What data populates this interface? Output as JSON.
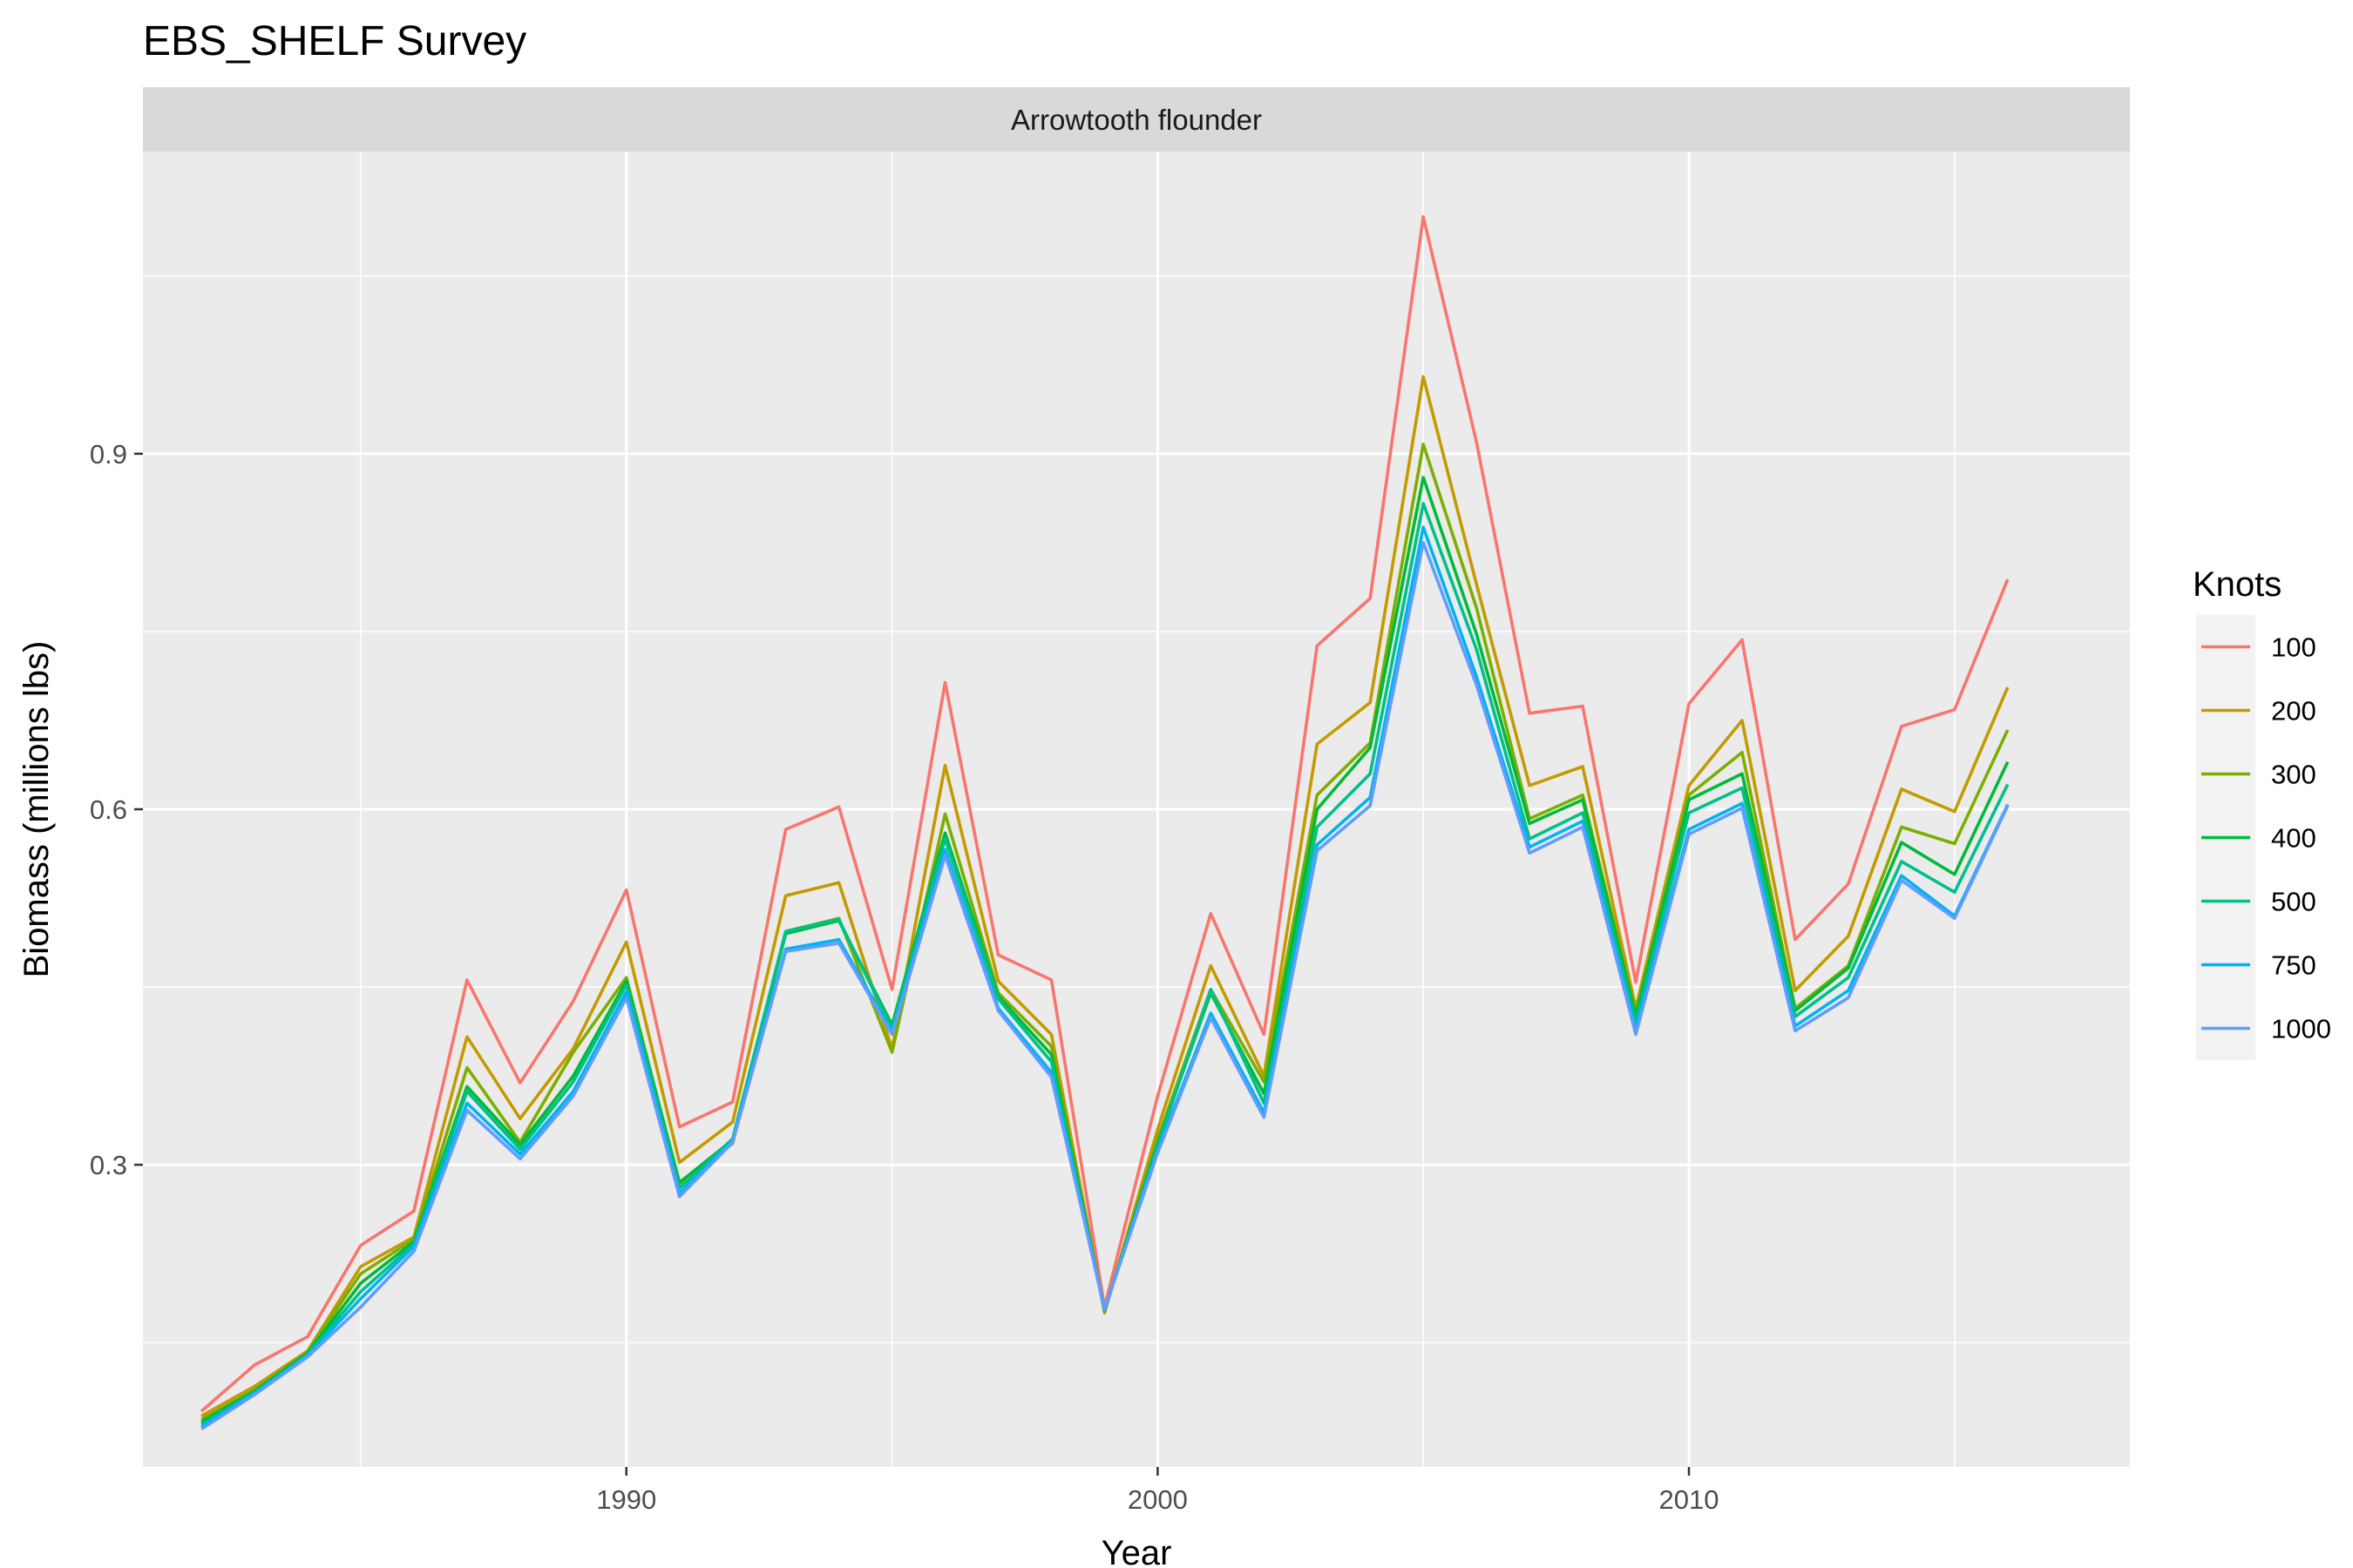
{
  "chart_data": {
    "type": "line",
    "title": "EBS_SHELF Survey",
    "facet_label": "Arrowtooth flounder",
    "xlabel": "Year",
    "ylabel": "Biomass (millions lbs)",
    "x_ticks": [
      1990,
      2000,
      2010
    ],
    "y_ticks": [
      0.3,
      0.6,
      0.9
    ],
    "xlim": [
      1980.9,
      2018.3
    ],
    "ylim": [
      0.045,
      1.155
    ],
    "grid": true,
    "legend_title": "Knots",
    "legend_position": "right",
    "x": [
      1982,
      1983,
      1984,
      1985,
      1986,
      1987,
      1988,
      1989,
      1990,
      1991,
      1992,
      1993,
      1994,
      1995,
      1996,
      1997,
      1998,
      1999,
      2000,
      2001,
      2002,
      2003,
      2004,
      2005,
      2006,
      2007,
      2008,
      2009,
      2010,
      2011,
      2012,
      2013,
      2014,
      2015,
      2016
    ],
    "series": [
      {
        "name": "100",
        "color": "#F8766D",
        "values": [
          0.092,
          0.131,
          0.155,
          0.232,
          0.261,
          0.456,
          0.369,
          0.438,
          0.532,
          0.332,
          0.353,
          0.583,
          0.602,
          0.448,
          0.707,
          0.477,
          0.456,
          0.18,
          0.358,
          0.512,
          0.41,
          0.738,
          0.778,
          1.1,
          0.91,
          0.681,
          0.687,
          0.454,
          0.689,
          0.743,
          0.49,
          0.537,
          0.67,
          0.684,
          0.794
        ]
      },
      {
        "name": "200",
        "color": "#C49A00",
        "values": [
          0.088,
          0.113,
          0.143,
          0.214,
          0.239,
          0.408,
          0.339,
          0.398,
          0.488,
          0.302,
          0.336,
          0.527,
          0.538,
          0.398,
          0.637,
          0.455,
          0.41,
          0.175,
          0.33,
          0.468,
          0.375,
          0.655,
          0.69,
          0.965,
          0.79,
          0.62,
          0.636,
          0.432,
          0.62,
          0.675,
          0.447,
          0.493,
          0.617,
          0.598,
          0.703
        ]
      },
      {
        "name": "300",
        "color": "#7CAE00",
        "values": [
          0.085,
          0.11,
          0.142,
          0.208,
          0.237,
          0.382,
          0.319,
          0.395,
          0.458,
          0.284,
          0.318,
          0.497,
          0.508,
          0.395,
          0.596,
          0.445,
          0.4,
          0.176,
          0.322,
          0.448,
          0.37,
          0.612,
          0.656,
          0.908,
          0.77,
          0.592,
          0.612,
          0.428,
          0.612,
          0.648,
          0.432,
          0.468,
          0.585,
          0.571,
          0.667
        ]
      },
      {
        "name": "400",
        "color": "#00BA38",
        "values": [
          0.083,
          0.109,
          0.141,
          0.2,
          0.235,
          0.366,
          0.317,
          0.375,
          0.455,
          0.285,
          0.321,
          0.495,
          0.506,
          0.418,
          0.58,
          0.442,
          0.393,
          0.177,
          0.318,
          0.445,
          0.36,
          0.6,
          0.652,
          0.88,
          0.748,
          0.588,
          0.608,
          0.425,
          0.608,
          0.63,
          0.43,
          0.466,
          0.572,
          0.545,
          0.64
        ]
      },
      {
        "name": "500",
        "color": "#00C08B",
        "values": [
          0.081,
          0.108,
          0.14,
          0.193,
          0.233,
          0.362,
          0.313,
          0.37,
          0.452,
          0.28,
          0.322,
          0.497,
          0.507,
          0.415,
          0.575,
          0.44,
          0.387,
          0.177,
          0.316,
          0.448,
          0.352,
          0.585,
          0.63,
          0.858,
          0.735,
          0.575,
          0.597,
          0.42,
          0.597,
          0.618,
          0.425,
          0.458,
          0.556,
          0.53,
          0.621
        ]
      },
      {
        "name": "750",
        "color": "#00B4F0",
        "values": [
          0.079,
          0.107,
          0.139,
          0.187,
          0.231,
          0.352,
          0.309,
          0.362,
          0.446,
          0.276,
          0.32,
          0.482,
          0.49,
          0.412,
          0.566,
          0.432,
          0.378,
          0.178,
          0.312,
          0.428,
          0.344,
          0.57,
          0.61,
          0.838,
          0.712,
          0.568,
          0.59,
          0.414,
          0.583,
          0.605,
          0.417,
          0.447,
          0.544,
          0.51,
          0.604
        ]
      },
      {
        "name": "1000",
        "color": "#619CFF",
        "values": [
          0.077,
          0.106,
          0.138,
          0.18,
          0.227,
          0.346,
          0.305,
          0.358,
          0.441,
          0.273,
          0.319,
          0.48,
          0.487,
          0.41,
          0.561,
          0.43,
          0.374,
          0.178,
          0.31,
          0.424,
          0.34,
          0.565,
          0.603,
          0.825,
          0.705,
          0.563,
          0.585,
          0.41,
          0.579,
          0.601,
          0.413,
          0.441,
          0.54,
          0.508,
          0.603
        ]
      }
    ]
  }
}
